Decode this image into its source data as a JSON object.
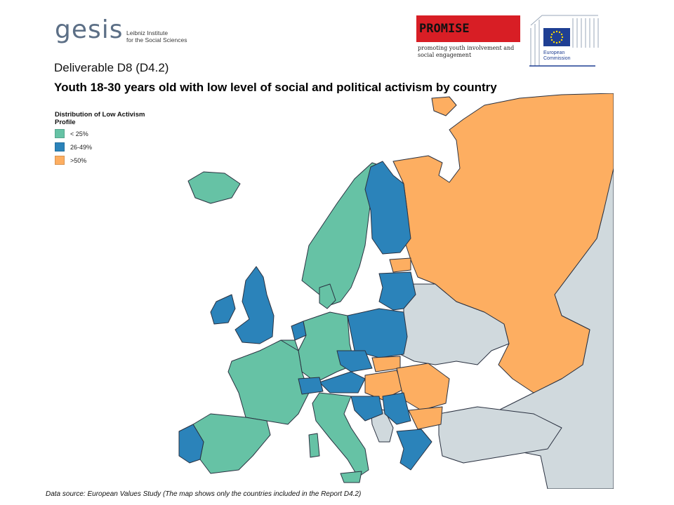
{
  "header": {
    "gesis_word": "gesis",
    "gesis_sub_line1": "Leibniz Institute",
    "gesis_sub_line2": "for the Social Sciences",
    "promise_word": "PROMISE",
    "promise_tag_line1": "promoting youth involvement and",
    "promise_tag_line2": "social engagement",
    "ec_line1": "European",
    "ec_line2": "Commission"
  },
  "deliverable": "Deliverable D8 (D4.2)",
  "title": "Youth 18-30 years old with low level of social and political activism by country",
  "legend": {
    "title": "Distribution of Low Activism Profile",
    "items": [
      {
        "label": "< 25%",
        "color": "#66c2a5"
      },
      {
        "label": "26-49%",
        "color": "#2b83ba"
      },
      {
        "label": ">50%",
        "color": "#fdae61"
      }
    ]
  },
  "colors": {
    "low": "#66c2a5",
    "mid": "#2b83ba",
    "high": "#fdae61",
    "not_included": "#d0d9dd",
    "border": "#2a3140"
  },
  "source": "Data source:  European Values Study (The map shows only the countries included in the Report D4.2)"
}
